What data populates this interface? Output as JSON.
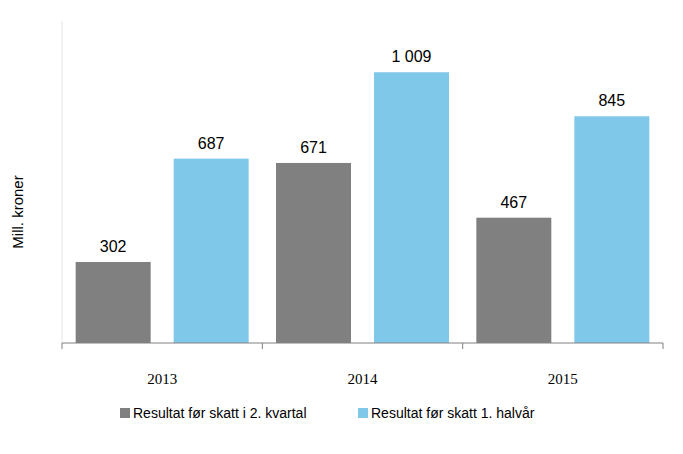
{
  "chart_data": {
    "type": "bar",
    "y_label": "Mill. kroner",
    "categories": [
      "2013",
      "2014",
      "2015"
    ],
    "series": [
      {
        "name": "Resultat før skatt i 2. kvartal",
        "color": "#808080",
        "values": [
          302,
          671,
          467
        ],
        "value_labels": [
          "302",
          "671",
          "467"
        ]
      },
      {
        "name": "Resultat før skatt 1. halvår",
        "color": "#80c8ea",
        "values": [
          687,
          1009,
          845
        ],
        "value_labels": [
          "687",
          "1 009",
          "845"
        ]
      }
    ],
    "ylim": [
      0,
      1200
    ],
    "data_labels": true,
    "tick_labels": "x",
    "grid": false,
    "legend": "bottom"
  }
}
